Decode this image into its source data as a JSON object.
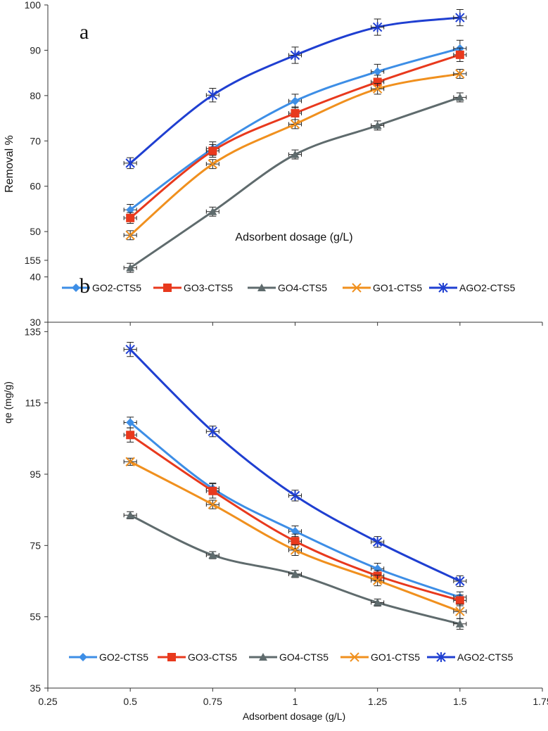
{
  "chart_data": [
    {
      "type": "line",
      "panel_label": "a",
      "xlabel": "Adsorbent dosage (g/L)",
      "ylabel": "Removal %",
      "xlim": [
        0.25,
        1.75
      ],
      "ylim": [
        30,
        100
      ],
      "x_ticks": [
        "0.25",
        "0.5",
        "0.75",
        "1",
        "1.25",
        "1.5",
        "1.75"
      ],
      "y_ticks": [
        "30",
        "40",
        "50",
        "60",
        "70",
        "80",
        "90",
        "100"
      ],
      "x": [
        0.5,
        0.75,
        1,
        1.25,
        1.5
      ],
      "legend_position": "bottom-inside",
      "series": [
        {
          "name": "GO2-CTS5",
          "color": "#3d8ee6",
          "marker": "diamond",
          "values": [
            54.8,
            68.3,
            78.8,
            85.3,
            90.4
          ],
          "errors": [
            1.2,
            1.5,
            1.5,
            1.6,
            1.8
          ]
        },
        {
          "name": "GO3-CTS5",
          "color": "#e8391d",
          "marker": "square",
          "values": [
            53,
            67.8,
            76.1,
            83,
            89
          ],
          "errors": [
            1.2,
            1.4,
            1.4,
            1.5,
            1.5
          ]
        },
        {
          "name": "GO4-CTS5",
          "color": "#5f6b6d",
          "marker": "triangle",
          "values": [
            42,
            54.4,
            67,
            73.4,
            79.6
          ],
          "errors": [
            1,
            1,
            1,
            1,
            1
          ]
        },
        {
          "name": "GO1-CTS5",
          "color": "#f0901e",
          "marker": "x",
          "values": [
            49.2,
            64.9,
            73.7,
            81.5,
            84.8
          ],
          "errors": [
            1,
            1,
            1,
            1.2,
            1
          ]
        },
        {
          "name": "AGO2-CTS5",
          "color": "#1f3fd1",
          "marker": "star",
          "values": [
            65.1,
            80.1,
            88.9,
            95.1,
            97.2
          ],
          "errors": [
            1.2,
            1.5,
            1.8,
            1.8,
            1.8
          ]
        }
      ]
    },
    {
      "type": "line",
      "panel_label": "b",
      "xlabel": "Adsorbent dosage (g/L)",
      "ylabel": "qe (mg/g)",
      "xlim": [
        0.25,
        1.75
      ],
      "ylim": [
        35,
        155
      ],
      "x_ticks": [
        "0.25",
        "0.5",
        "0.75",
        "1",
        "1.25",
        "1.5",
        "1.75"
      ],
      "y_ticks": [
        "35",
        "55",
        "75",
        "95",
        "115",
        "135",
        "155"
      ],
      "x": [
        0.5,
        0.75,
        1,
        1.25,
        1.5
      ],
      "legend_position": "bottom-inside",
      "series": [
        {
          "name": "GO2-CTS5",
          "color": "#3d8ee6",
          "marker": "diamond",
          "values": [
            109.5,
            91,
            79,
            68.5,
            60.5
          ],
          "errors": [
            1.5,
            1.5,
            1.5,
            1.5,
            1.5
          ]
        },
        {
          "name": "GO3-CTS5",
          "color": "#e8391d",
          "marker": "square",
          "values": [
            106,
            90.3,
            76.2,
            66.5,
            59.6
          ],
          "errors": [
            2,
            2,
            2,
            1.5,
            1.5
          ]
        },
        {
          "name": "GO4-CTS5",
          "color": "#5f6b6d",
          "marker": "triangle",
          "values": [
            83.5,
            72.3,
            67,
            59,
            53
          ],
          "errors": [
            1,
            1,
            1,
            1,
            1.5
          ]
        },
        {
          "name": "GO1-CTS5",
          "color": "#f0901e",
          "marker": "x",
          "values": [
            98.5,
            86.5,
            73.7,
            65.2,
            56.5
          ],
          "errors": [
            1,
            1.2,
            1.5,
            1.5,
            2
          ]
        },
        {
          "name": "AGO2-CTS5",
          "color": "#1f3fd1",
          "marker": "star",
          "values": [
            130,
            107,
            89,
            76,
            65
          ],
          "errors": [
            2,
            1.5,
            1.5,
            1.5,
            1.5
          ]
        }
      ]
    }
  ]
}
